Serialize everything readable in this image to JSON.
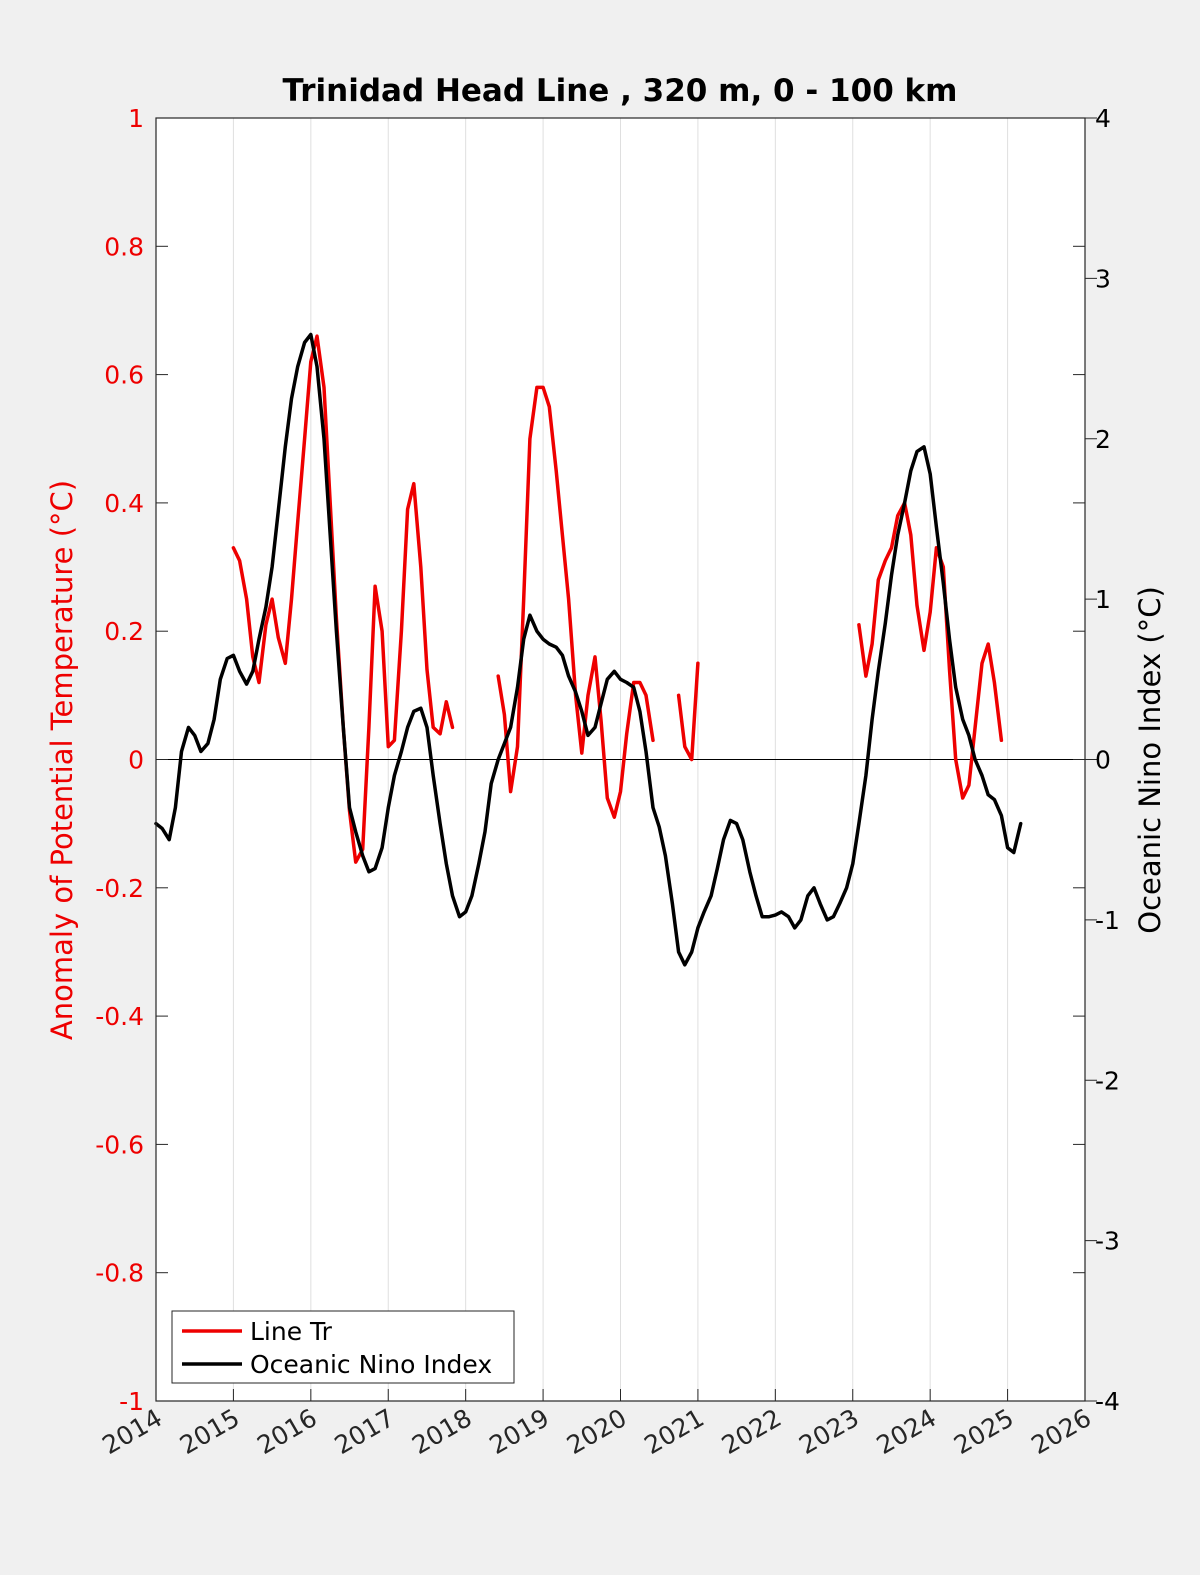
{
  "chart_data": {
    "type": "line",
    "title": "Trinidad Head Line , 320 m, 0 - 100 km",
    "xlabel": "",
    "ylabel_left": "Anomaly of Potential Temperature (°C)",
    "ylabel_right": "Oceanic Nino Index (°C)",
    "xlim": [
      2014,
      2026
    ],
    "ylim_left": [
      -1,
      1
    ],
    "ylim_right": [
      -4,
      4
    ],
    "x_ticks": [
      "2014",
      "2015",
      "2016",
      "2017",
      "2018",
      "2019",
      "2020",
      "2021",
      "2022",
      "2023",
      "2024",
      "2025",
      "2026"
    ],
    "y_ticks_left": [
      "-1",
      "-0.8",
      "-0.6",
      "-0.4",
      "-0.2",
      "0",
      "0.2",
      "0.4",
      "0.6",
      "0.8",
      "1"
    ],
    "y_ticks_right": [
      "-4",
      "-3",
      "-2",
      "-1",
      "0",
      "1",
      "2",
      "3",
      "4"
    ],
    "grid": "vertical",
    "legend_position": "bottom-left",
    "colors": {
      "line_tr": "#ee0000",
      "oni": "#000000",
      "left_axis": "#ee0000"
    },
    "series": [
      {
        "name": "Line Tr",
        "axis": "left",
        "color": "#ee0000",
        "segments": [
          [
            [
              2015.0,
              0.33
            ],
            [
              2015.08,
              0.31
            ],
            [
              2015.17,
              0.25
            ],
            [
              2015.25,
              0.16
            ],
            [
              2015.33,
              0.12
            ],
            [
              2015.42,
              0.21
            ],
            [
              2015.5,
              0.25
            ],
            [
              2015.58,
              0.19
            ],
            [
              2015.67,
              0.15
            ],
            [
              2015.75,
              0.25
            ],
            [
              2015.83,
              0.37
            ],
            [
              2015.92,
              0.5
            ],
            [
              2016.0,
              0.62
            ],
            [
              2016.08,
              0.66
            ],
            [
              2016.17,
              0.58
            ],
            [
              2016.25,
              0.4
            ],
            [
              2016.33,
              0.22
            ],
            [
              2016.42,
              0.05
            ],
            [
              2016.5,
              -0.08
            ],
            [
              2016.58,
              -0.16
            ],
            [
              2016.67,
              -0.14
            ],
            [
              2016.75,
              0.05
            ],
            [
              2016.83,
              0.27
            ],
            [
              2016.92,
              0.2
            ],
            [
              2017.0,
              0.02
            ],
            [
              2017.08,
              0.03
            ],
            [
              2017.17,
              0.2
            ],
            [
              2017.25,
              0.39
            ],
            [
              2017.33,
              0.43
            ],
            [
              2017.42,
              0.3
            ],
            [
              2017.5,
              0.14
            ],
            [
              2017.58,
              0.05
            ],
            [
              2017.67,
              0.04
            ],
            [
              2017.75,
              0.09
            ],
            [
              2017.83,
              0.05
            ]
          ],
          [
            [
              2018.42,
              0.13
            ],
            [
              2018.5,
              0.07
            ],
            [
              2018.58,
              -0.05
            ],
            [
              2018.67,
              0.02
            ],
            [
              2018.75,
              0.25
            ],
            [
              2018.83,
              0.5
            ],
            [
              2018.92,
              0.58
            ],
            [
              2019.0,
              0.58
            ],
            [
              2019.08,
              0.55
            ],
            [
              2019.17,
              0.45
            ],
            [
              2019.25,
              0.35
            ],
            [
              2019.33,
              0.25
            ],
            [
              2019.42,
              0.1
            ],
            [
              2019.5,
              0.01
            ],
            [
              2019.58,
              0.1
            ],
            [
              2019.67,
              0.16
            ],
            [
              2019.75,
              0.06
            ],
            [
              2019.83,
              -0.06
            ],
            [
              2019.92,
              -0.09
            ],
            [
              2020.0,
              -0.05
            ],
            [
              2020.08,
              0.04
            ],
            [
              2020.17,
              0.12
            ],
            [
              2020.25,
              0.12
            ],
            [
              2020.33,
              0.1
            ],
            [
              2020.42,
              0.03
            ]
          ],
          [
            [
              2020.75,
              0.1
            ],
            [
              2020.83,
              0.02
            ],
            [
              2020.92,
              0.0
            ],
            [
              2021.0,
              0.15
            ]
          ],
          [
            [
              2023.08,
              0.21
            ],
            [
              2023.17,
              0.13
            ],
            [
              2023.25,
              0.18
            ],
            [
              2023.33,
              0.28
            ],
            [
              2023.42,
              0.31
            ],
            [
              2023.5,
              0.33
            ],
            [
              2023.58,
              0.38
            ],
            [
              2023.67,
              0.4
            ],
            [
              2023.75,
              0.35
            ],
            [
              2023.83,
              0.24
            ],
            [
              2023.92,
              0.17
            ],
            [
              2024.0,
              0.23
            ],
            [
              2024.08,
              0.33
            ],
            [
              2024.17,
              0.3
            ],
            [
              2024.25,
              0.14
            ],
            [
              2024.33,
              0.0
            ],
            [
              2024.42,
              -0.06
            ],
            [
              2024.5,
              -0.04
            ],
            [
              2024.58,
              0.05
            ],
            [
              2024.67,
              0.15
            ],
            [
              2024.75,
              0.18
            ],
            [
              2024.83,
              0.12
            ],
            [
              2024.92,
              0.03
            ]
          ]
        ]
      },
      {
        "name": "Oceanic Nino Index",
        "axis": "right",
        "color": "#000000",
        "segments": [
          [
            [
              2014.0,
              -0.4
            ],
            [
              2014.08,
              -0.43
            ],
            [
              2014.17,
              -0.5
            ],
            [
              2014.25,
              -0.3
            ],
            [
              2014.33,
              0.05
            ],
            [
              2014.42,
              0.2
            ],
            [
              2014.5,
              0.15
            ],
            [
              2014.58,
              0.05
            ],
            [
              2014.67,
              0.1
            ],
            [
              2014.75,
              0.25
            ],
            [
              2014.83,
              0.5
            ],
            [
              2014.92,
              0.63
            ],
            [
              2015.0,
              0.65
            ],
            [
              2015.08,
              0.55
            ],
            [
              2015.17,
              0.47
            ],
            [
              2015.25,
              0.55
            ],
            [
              2015.33,
              0.75
            ],
            [
              2015.42,
              0.95
            ],
            [
              2015.5,
              1.2
            ],
            [
              2015.58,
              1.55
            ],
            [
              2015.67,
              1.95
            ],
            [
              2015.75,
              2.25
            ],
            [
              2015.83,
              2.45
            ],
            [
              2015.92,
              2.6
            ],
            [
              2016.0,
              2.65
            ],
            [
              2016.08,
              2.45
            ],
            [
              2016.17,
              2.0
            ],
            [
              2016.25,
              1.4
            ],
            [
              2016.33,
              0.8
            ],
            [
              2016.42,
              0.2
            ],
            [
              2016.5,
              -0.3
            ],
            [
              2016.58,
              -0.45
            ],
            [
              2016.67,
              -0.6
            ],
            [
              2016.75,
              -0.7
            ],
            [
              2016.83,
              -0.68
            ],
            [
              2016.92,
              -0.55
            ],
            [
              2017.0,
              -0.3
            ],
            [
              2017.08,
              -0.1
            ],
            [
              2017.17,
              0.05
            ],
            [
              2017.25,
              0.2
            ],
            [
              2017.33,
              0.3
            ],
            [
              2017.42,
              0.32
            ],
            [
              2017.5,
              0.2
            ],
            [
              2017.58,
              -0.1
            ],
            [
              2017.67,
              -0.4
            ],
            [
              2017.75,
              -0.65
            ],
            [
              2017.83,
              -0.85
            ],
            [
              2017.92,
              -0.98
            ],
            [
              2018.0,
              -0.95
            ],
            [
              2018.08,
              -0.85
            ],
            [
              2018.17,
              -0.65
            ],
            [
              2018.25,
              -0.45
            ],
            [
              2018.33,
              -0.15
            ],
            [
              2018.42,
              0.0
            ],
            [
              2018.5,
              0.1
            ],
            [
              2018.58,
              0.2
            ],
            [
              2018.67,
              0.45
            ],
            [
              2018.75,
              0.75
            ],
            [
              2018.83,
              0.9
            ],
            [
              2018.92,
              0.8
            ],
            [
              2019.0,
              0.75
            ],
            [
              2019.08,
              0.72
            ],
            [
              2019.17,
              0.7
            ],
            [
              2019.25,
              0.65
            ],
            [
              2019.33,
              0.52
            ],
            [
              2019.42,
              0.42
            ],
            [
              2019.5,
              0.3
            ],
            [
              2019.58,
              0.15
            ],
            [
              2019.67,
              0.2
            ],
            [
              2019.75,
              0.35
            ],
            [
              2019.83,
              0.5
            ],
            [
              2019.92,
              0.55
            ],
            [
              2020.0,
              0.5
            ],
            [
              2020.08,
              0.48
            ],
            [
              2020.17,
              0.45
            ],
            [
              2020.25,
              0.3
            ],
            [
              2020.33,
              0.05
            ],
            [
              2020.42,
              -0.3
            ],
            [
              2020.5,
              -0.42
            ],
            [
              2020.58,
              -0.6
            ],
            [
              2020.67,
              -0.9
            ],
            [
              2020.75,
              -1.2
            ],
            [
              2020.83,
              -1.28
            ],
            [
              2020.92,
              -1.2
            ],
            [
              2021.0,
              -1.05
            ],
            [
              2021.08,
              -0.95
            ],
            [
              2021.17,
              -0.85
            ],
            [
              2021.25,
              -0.68
            ],
            [
              2021.33,
              -0.5
            ],
            [
              2021.42,
              -0.38
            ],
            [
              2021.5,
              -0.4
            ],
            [
              2021.58,
              -0.5
            ],
            [
              2021.67,
              -0.7
            ],
            [
              2021.75,
              -0.85
            ],
            [
              2021.83,
              -0.98
            ],
            [
              2021.92,
              -0.98
            ],
            [
              2022.0,
              -0.97
            ],
            [
              2022.08,
              -0.95
            ],
            [
              2022.17,
              -0.98
            ],
            [
              2022.25,
              -1.05
            ],
            [
              2022.33,
              -1.0
            ],
            [
              2022.42,
              -0.85
            ],
            [
              2022.5,
              -0.8
            ],
            [
              2022.58,
              -0.9
            ],
            [
              2022.67,
              -1.0
            ],
            [
              2022.75,
              -0.98
            ],
            [
              2022.83,
              -0.9
            ],
            [
              2022.92,
              -0.8
            ],
            [
              2023.0,
              -0.65
            ],
            [
              2023.08,
              -0.4
            ],
            [
              2023.17,
              -0.1
            ],
            [
              2023.25,
              0.25
            ],
            [
              2023.33,
              0.55
            ],
            [
              2023.42,
              0.85
            ],
            [
              2023.5,
              1.15
            ],
            [
              2023.58,
              1.4
            ],
            [
              2023.67,
              1.6
            ],
            [
              2023.75,
              1.8
            ],
            [
              2023.83,
              1.92
            ],
            [
              2023.92,
              1.95
            ],
            [
              2024.0,
              1.78
            ],
            [
              2024.08,
              1.45
            ],
            [
              2024.17,
              1.1
            ],
            [
              2024.25,
              0.75
            ],
            [
              2024.33,
              0.45
            ],
            [
              2024.42,
              0.25
            ],
            [
              2024.5,
              0.15
            ],
            [
              2024.58,
              0.0
            ],
            [
              2024.67,
              -0.1
            ],
            [
              2024.75,
              -0.22
            ],
            [
              2024.83,
              -0.25
            ],
            [
              2024.92,
              -0.35
            ],
            [
              2025.0,
              -0.55
            ],
            [
              2025.08,
              -0.58
            ],
            [
              2025.17,
              -0.4
            ]
          ]
        ]
      }
    ]
  }
}
